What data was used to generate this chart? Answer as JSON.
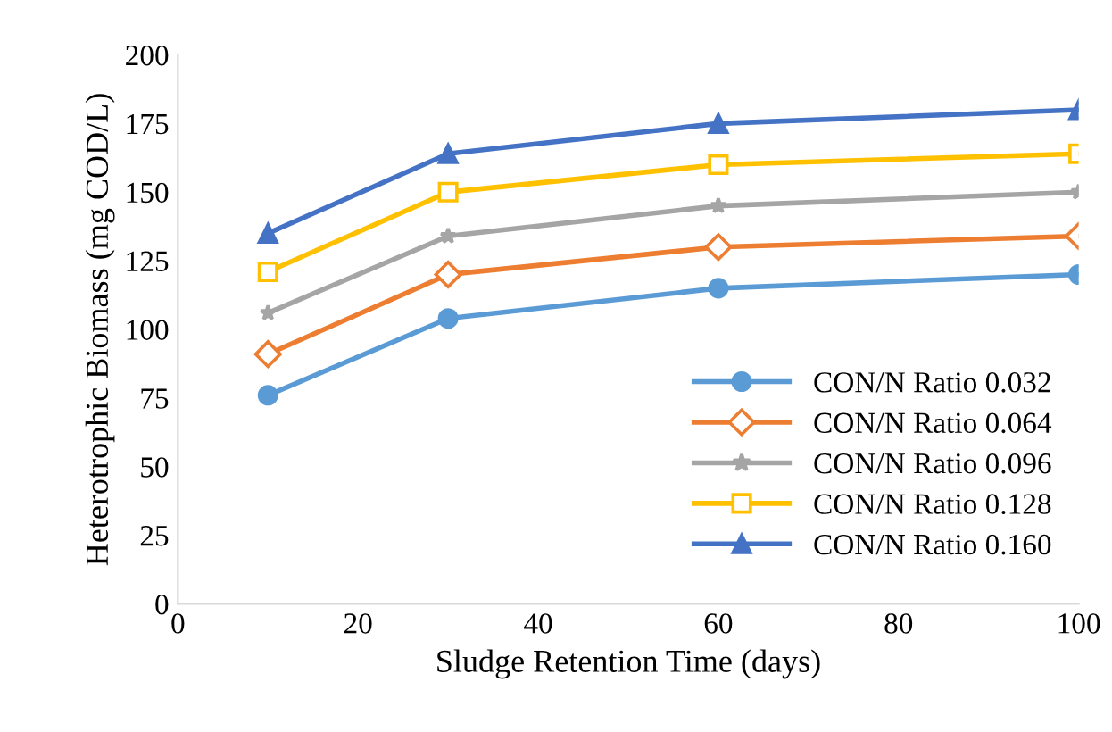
{
  "chart_data": {
    "type": "line",
    "xlabel": "Sludge Retention Time (days)",
    "ylabel": "Heterotrophic Biomass (mg COD/L)",
    "x": [
      10,
      30,
      60,
      100
    ],
    "series": [
      {
        "name": "CON/N Ratio 0.032",
        "color": "#5b9bd5",
        "marker": "circle",
        "values": [
          76,
          104,
          115,
          120
        ]
      },
      {
        "name": "CON/N Ratio 0.064",
        "color": "#ed7d31",
        "marker": "diamond",
        "values": [
          91,
          120,
          130,
          134
        ]
      },
      {
        "name": "CON/N Ratio 0.096",
        "color": "#a5a5a5",
        "marker": "star",
        "values": [
          106,
          134,
          145,
          150
        ]
      },
      {
        "name": "CON/N Ratio 0.128",
        "color": "#ffc000",
        "marker": "square",
        "values": [
          121,
          150,
          160,
          164
        ]
      },
      {
        "name": "CON/N Ratio 0.160",
        "color": "#4472c4",
        "marker": "triangle",
        "values": [
          135,
          164,
          175,
          180
        ]
      }
    ],
    "xlim": [
      0,
      100
    ],
    "xticks": [
      0,
      20,
      40,
      60,
      80,
      100
    ],
    "ylim": [
      0,
      200
    ],
    "yticks": [
      0,
      25,
      50,
      75,
      100,
      125,
      150,
      175,
      200
    ],
    "grid": false,
    "legend": "bottom right"
  }
}
